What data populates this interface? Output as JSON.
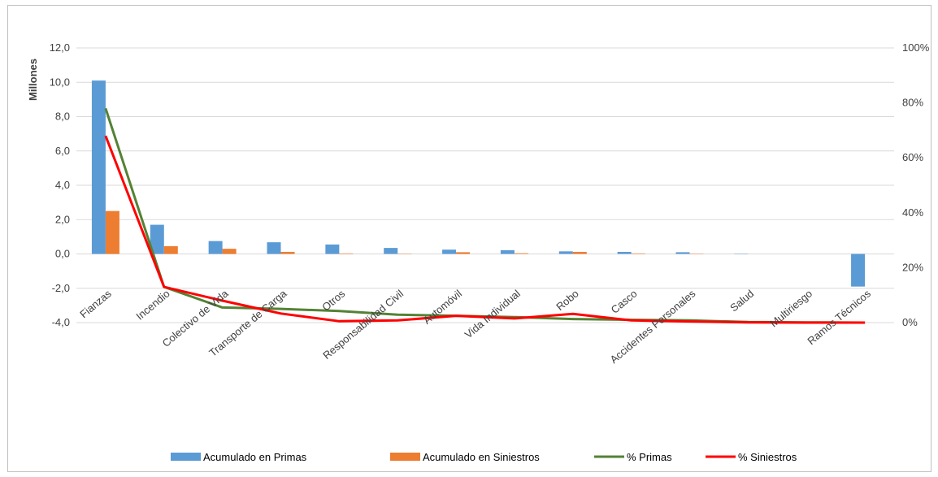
{
  "chart_data": {
    "type": "bar",
    "title": "",
    "ylabel": "Millones",
    "y2label": "",
    "ylim": [
      -4,
      12
    ],
    "y2lim": [
      0,
      1
    ],
    "yticks": [
      "12,0",
      "10,0",
      "8,0",
      "6,0",
      "4,0",
      "2,0",
      "0,0",
      "-2,0",
      "-4,0"
    ],
    "y2ticks": [
      "100%",
      "80%",
      "60%",
      "40%",
      "20%",
      "0%"
    ],
    "grid": true,
    "legend_position": "bottom",
    "categories": [
      "Fianzas",
      "Incendio",
      "Colectivo de Vida",
      "Transporte de Carga",
      "Otros",
      "Responsabilidad Civil",
      "Automóvil",
      "Vida Individual",
      "Robo",
      "Casco",
      "Accidentes Personales",
      "Salud",
      "Multiriesgo",
      "Ramos Técnicos"
    ],
    "series": [
      {
        "name": "Acumulado en Primas",
        "type": "bar",
        "axis": "left",
        "color": "#5B9BD5",
        "values": [
          10.1,
          1.7,
          0.75,
          0.68,
          0.55,
          0.35,
          0.25,
          0.22,
          0.15,
          0.12,
          0.1,
          0.02,
          0.01,
          -1.9
        ]
      },
      {
        "name": "Acumulado en Siniestros",
        "type": "bar",
        "axis": "left",
        "color": "#ED7D31",
        "values": [
          2.5,
          0.45,
          0.3,
          0.12,
          0.03,
          0.02,
          0.1,
          0.04,
          0.12,
          0.03,
          0.02,
          0.01,
          0.0,
          0.0
        ]
      },
      {
        "name": "% Primas",
        "type": "line",
        "axis": "right",
        "color": "#548235",
        "values": [
          0.78,
          0.13,
          0.055,
          0.05,
          0.042,
          0.029,
          0.025,
          0.02,
          0.013,
          0.01,
          0.008,
          0.002,
          0.001,
          0.0
        ]
      },
      {
        "name": "% Siniestros",
        "type": "line",
        "axis": "right",
        "color": "#FF0000",
        "values": [
          0.68,
          0.13,
          0.08,
          0.033,
          0.005,
          0.008,
          0.025,
          0.015,
          0.032,
          0.008,
          0.004,
          0.001,
          0.0,
          0.0
        ]
      }
    ]
  }
}
